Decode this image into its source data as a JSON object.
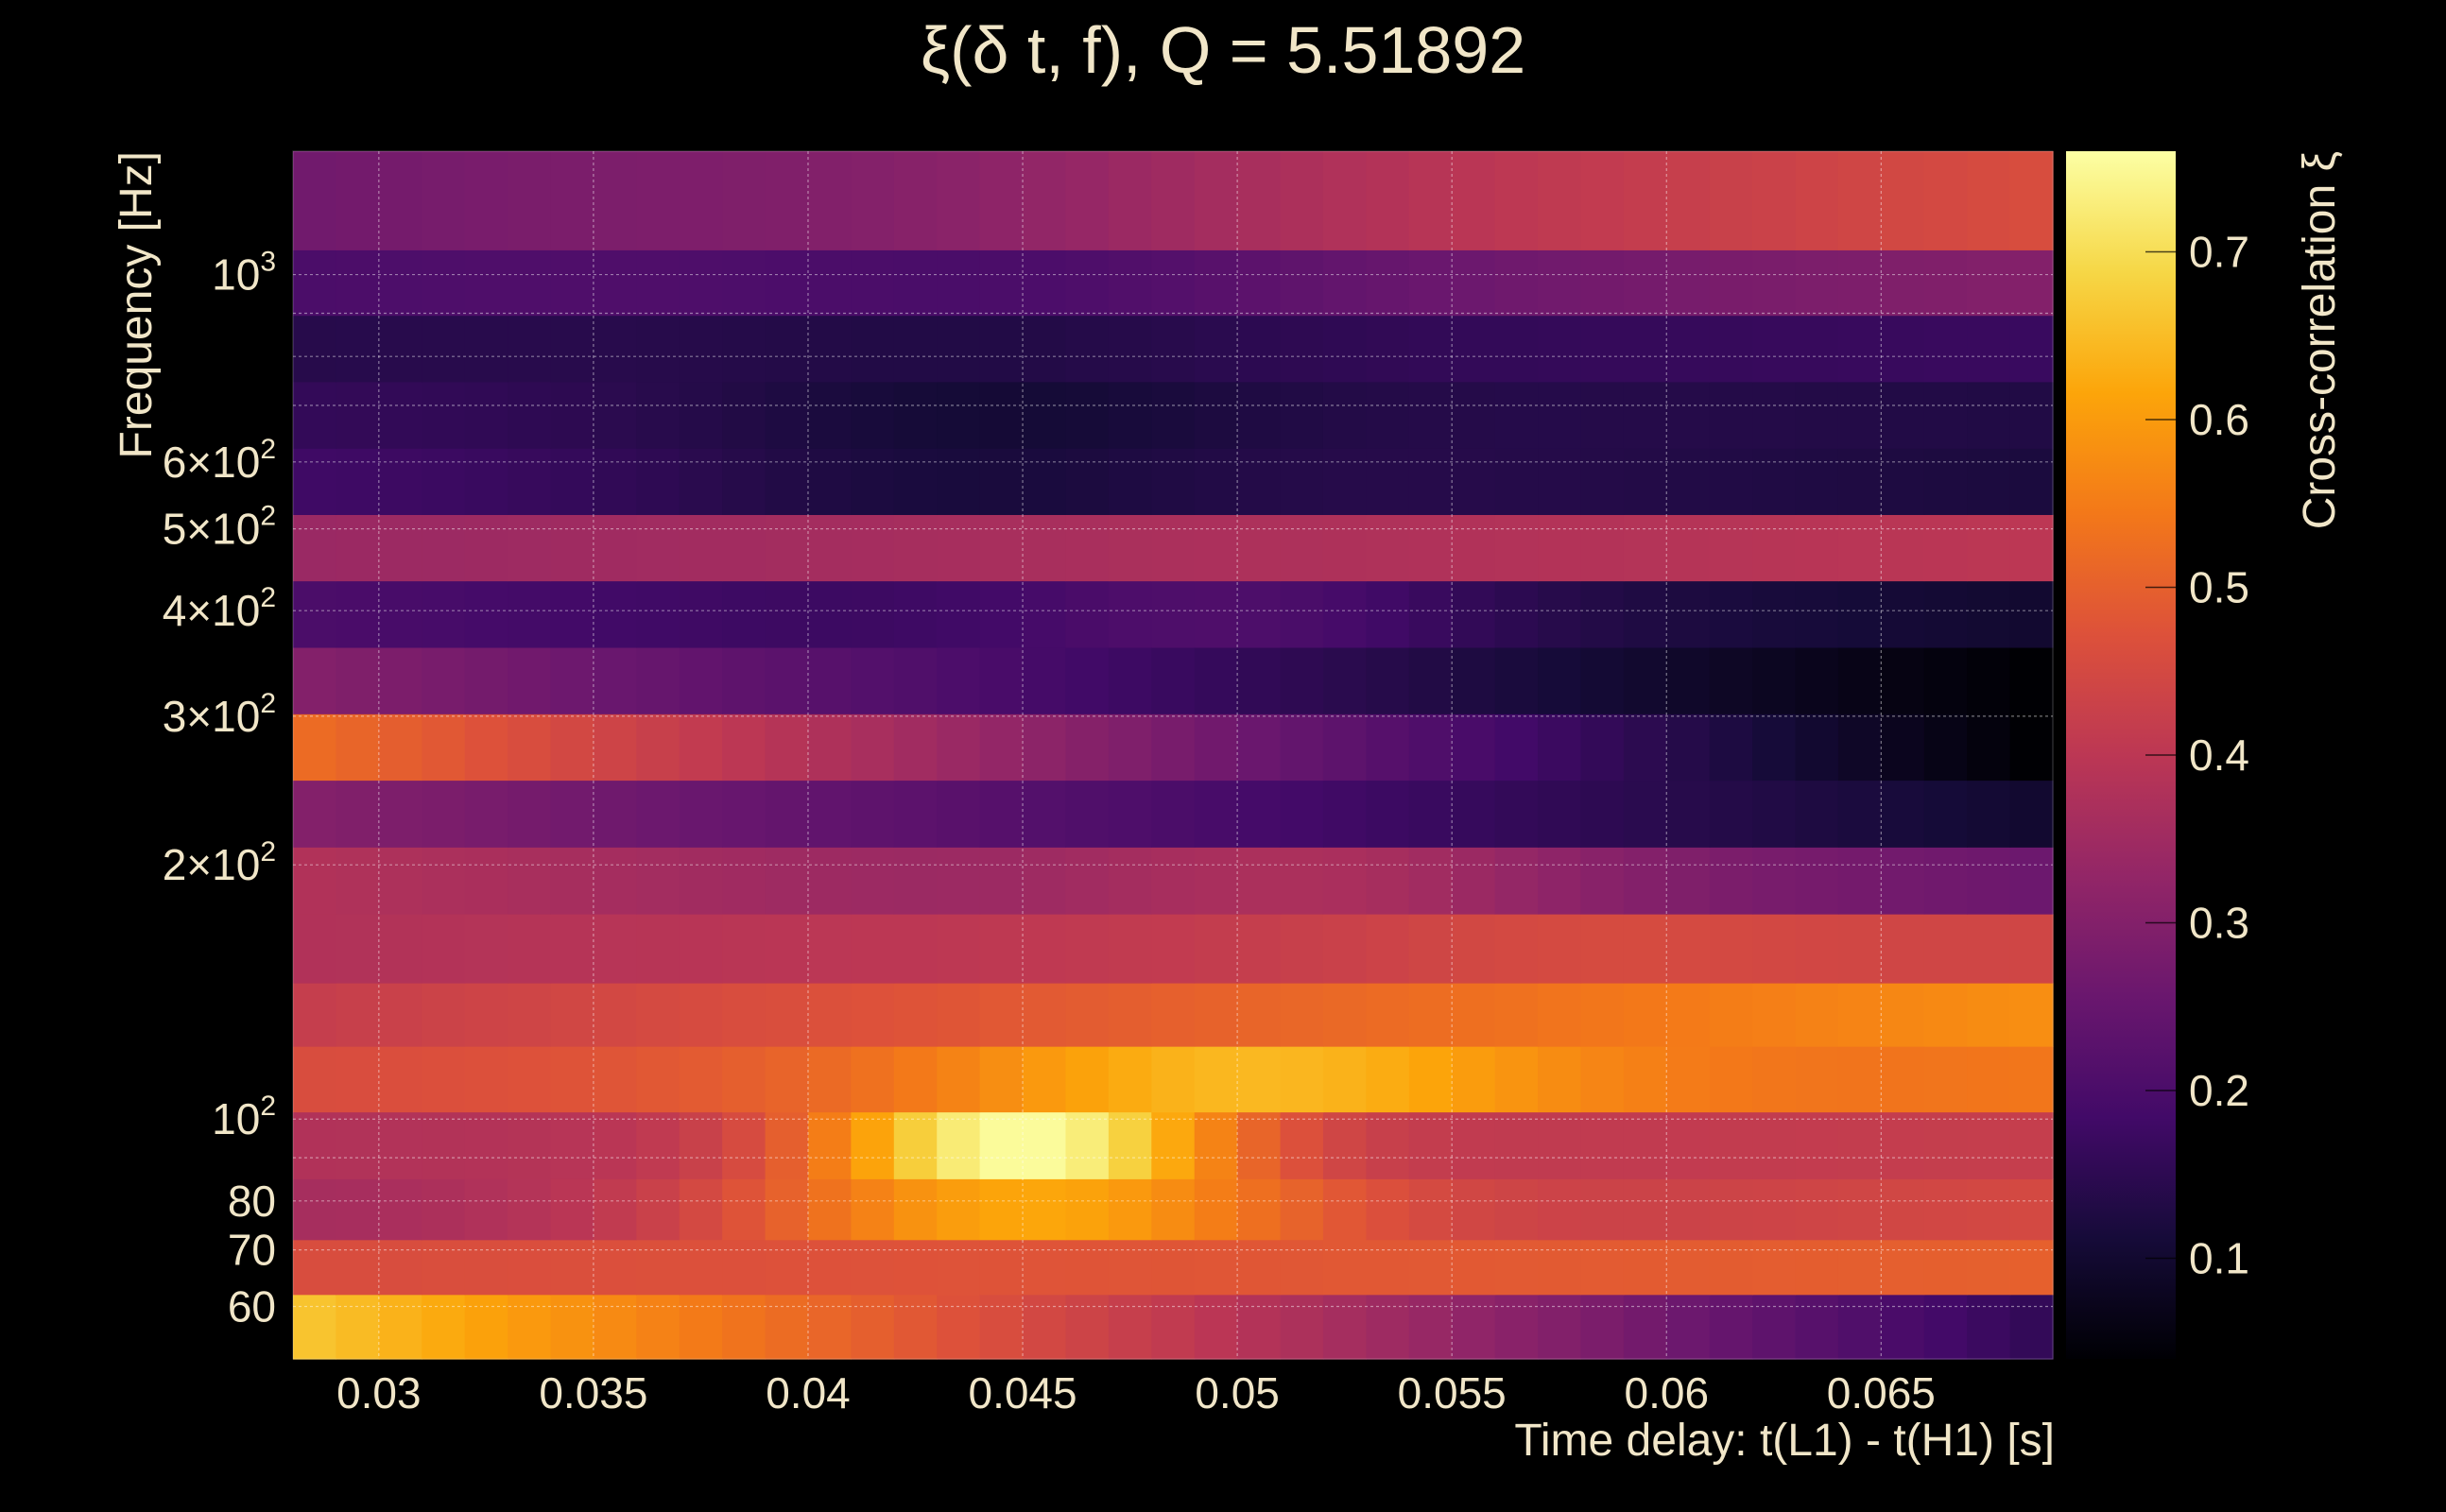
{
  "chart_data": {
    "type": "heatmap",
    "title": "ξ(δ t, f), Q = 5.51892",
    "xlabel": "Time delay: t(L1) - t(H1) [s]",
    "ylabel": "Frequency [Hz]",
    "colorbar_label": "Cross-correlation ξ",
    "colormap": "inferno",
    "grid": true,
    "y_scale": "log",
    "x_range": [
      0.028,
      0.069
    ],
    "y_range": [
      52,
      1400
    ],
    "color_range": [
      0.04,
      0.76
    ],
    "x_ticks": [
      {
        "value": 0.03,
        "label": "0.03"
      },
      {
        "value": 0.035,
        "label": "0.035"
      },
      {
        "value": 0.04,
        "label": "0.04"
      },
      {
        "value": 0.045,
        "label": "0.045"
      },
      {
        "value": 0.05,
        "label": "0.05"
      },
      {
        "value": 0.055,
        "label": "0.055"
      },
      {
        "value": 0.06,
        "label": "0.06"
      },
      {
        "value": 0.065,
        "label": "0.065"
      }
    ],
    "y_ticks": [
      {
        "value": 60,
        "label": "60"
      },
      {
        "value": 70,
        "label": "70"
      },
      {
        "value": 80,
        "label": "80"
      },
      {
        "value": 100,
        "label": "10",
        "sup": "2"
      },
      {
        "value": 200,
        "label": "2×10",
        "sup": "2"
      },
      {
        "value": 300,
        "label": "3×10",
        "sup": "2"
      },
      {
        "value": 400,
        "label": "4×10",
        "sup": "2"
      },
      {
        "value": 500,
        "label": "5×10",
        "sup": "2"
      },
      {
        "value": 600,
        "label": "6×10",
        "sup": "2"
      },
      {
        "value": 1000,
        "label": "10",
        "sup": "3"
      }
    ],
    "y_gridlines": [
      60,
      70,
      80,
      90,
      100,
      200,
      300,
      400,
      500,
      600,
      700,
      800,
      900,
      1000
    ],
    "colorbar_ticks": [
      {
        "value": 0.1,
        "label": "0.1"
      },
      {
        "value": 0.2,
        "label": "0.2"
      },
      {
        "value": 0.3,
        "label": "0.3"
      },
      {
        "value": 0.4,
        "label": "0.4"
      },
      {
        "value": 0.5,
        "label": "0.5"
      },
      {
        "value": 0.6,
        "label": "0.6"
      },
      {
        "value": 0.7,
        "label": "0.7"
      }
    ],
    "columns": 41,
    "x_start": 0.028,
    "x_step": 0.001,
    "rows": [
      {
        "f_low": 52,
        "f_high": 62,
        "v0": 0.66,
        "v1": 0.16,
        "bump": 0.0,
        "bc": 0.045,
        "bw": 0.005
      },
      {
        "f_low": 62,
        "f_high": 72,
        "v0": 0.46,
        "v1": 0.5,
        "bump": 0.0,
        "bc": 0.045,
        "bw": 0.005
      },
      {
        "f_low": 72,
        "f_high": 85,
        "v0": 0.36,
        "v1": 0.45,
        "bump": 0.22,
        "bc": 0.045,
        "bw": 0.007
      },
      {
        "f_low": 85,
        "f_high": 102,
        "v0": 0.38,
        "v1": 0.42,
        "bump": 0.36,
        "bc": 0.045,
        "bw": 0.005
      },
      {
        "f_low": 102,
        "f_high": 122,
        "v0": 0.46,
        "v1": 0.54,
        "bump": 0.14,
        "bc": 0.05,
        "bw": 0.008
      },
      {
        "f_low": 122,
        "f_high": 145,
        "v0": 0.42,
        "v1": 0.58,
        "bump": 0.0,
        "bc": 0.045,
        "bw": 0.005
      },
      {
        "f_low": 145,
        "f_high": 175,
        "v0": 0.38,
        "v1": 0.44,
        "bump": 0.03,
        "bc": 0.058,
        "bw": 0.006
      },
      {
        "f_low": 175,
        "f_high": 210,
        "v0": 0.38,
        "v1": 0.26,
        "bump": 0.06,
        "bc": 0.052,
        "bw": 0.006
      },
      {
        "f_low": 210,
        "f_high": 252,
        "v0": 0.3,
        "v1": 0.1,
        "bump": 0.0,
        "bc": 0.045,
        "bw": 0.005
      },
      {
        "f_low": 252,
        "f_high": 302,
        "v0": 0.52,
        "v1": 0.04,
        "bump": 0.0,
        "bc": 0.045,
        "bw": 0.005
      },
      {
        "f_low": 302,
        "f_high": 362,
        "v0": 0.3,
        "v1": 0.04,
        "bump": 0.0,
        "bc": 0.045,
        "bw": 0.005
      },
      {
        "f_low": 362,
        "f_high": 434,
        "v0": 0.2,
        "v1": 0.1,
        "bump": 0.06,
        "bc": 0.05,
        "bw": 0.006
      },
      {
        "f_low": 434,
        "f_high": 520,
        "v0": 0.34,
        "v1": 0.4,
        "bump": 0.0,
        "bc": 0.045,
        "bw": 0.005
      },
      {
        "f_low": 520,
        "f_high": 623,
        "v0": 0.18,
        "v1": 0.12,
        "bump": -0.04,
        "bc": 0.043,
        "bw": 0.007
      },
      {
        "f_low": 623,
        "f_high": 747,
        "v0": 0.16,
        "v1": 0.13,
        "bump": -0.04,
        "bc": 0.044,
        "bw": 0.007
      },
      {
        "f_low": 747,
        "f_high": 895,
        "v0": 0.14,
        "v1": 0.17,
        "bump": -0.02,
        "bc": 0.044,
        "bw": 0.007
      },
      {
        "f_low": 895,
        "f_high": 1070,
        "v0": 0.2,
        "v1": 0.3,
        "bump": -0.04,
        "bc": 0.045,
        "bw": 0.008
      },
      {
        "f_low": 1070,
        "f_high": 1400,
        "v0": 0.27,
        "v1": 0.46,
        "bump": -0.03,
        "bc": 0.042,
        "bw": 0.008
      }
    ]
  }
}
